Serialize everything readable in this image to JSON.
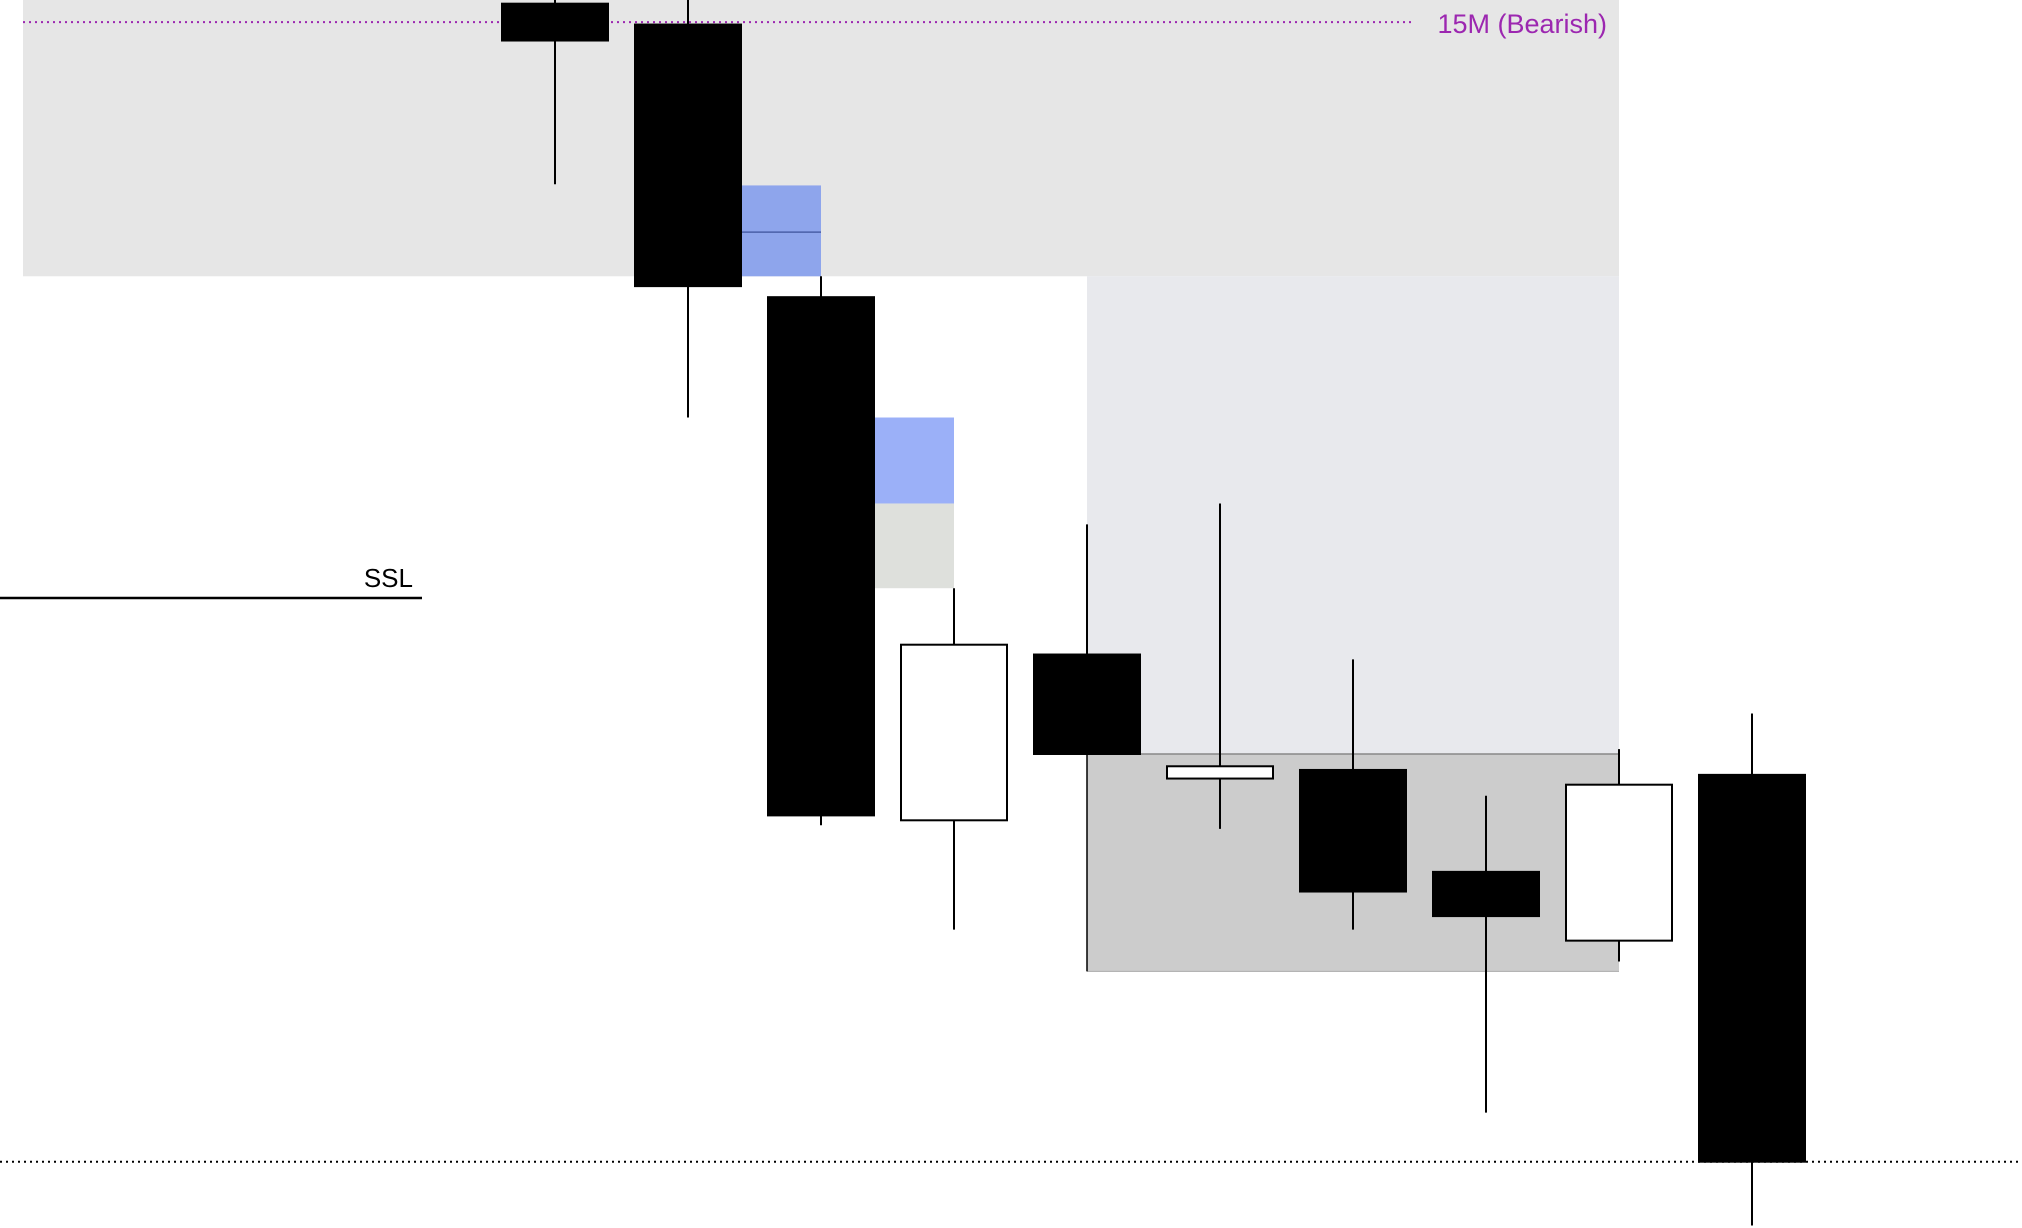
{
  "chart_data": {
    "type": "candlestick",
    "title": "",
    "xlabel": "",
    "ylabel": "",
    "ylim": [
      0,
      100
    ],
    "grid": false,
    "colors": {
      "bearish_body": "#000000",
      "bullish_body": "#ffffff",
      "premium_zone": "#e6e6e6",
      "upper_range_zone": "#e8e9ed",
      "lower_range_zone": "#cccccc",
      "fvg_1": "#8ea5ec",
      "fvg_2": "#9bb0f8",
      "fvg_2_filled": "#dee0dc",
      "timeframe_line": "#9c27b0"
    },
    "candles": [
      {
        "open": 99.7,
        "high": 100.0,
        "low": 85.0,
        "close": 96.7
      },
      {
        "open": 98.0,
        "high": 100.0,
        "low": 66.0,
        "close": 76.7
      },
      {
        "open": 75.8,
        "high": 77.5,
        "low": 32.8,
        "close": 33.6
      },
      {
        "open": 33.2,
        "high": 52.1,
        "low": 24.3,
        "close": 47.5
      },
      {
        "open": 46.7,
        "high": 57.3,
        "low": 38.6,
        "close": 38.6
      },
      {
        "open": 36.6,
        "high": 59.0,
        "low": 32.5,
        "close": 37.6
      },
      {
        "open": 37.3,
        "high": 46.3,
        "low": 24.3,
        "close": 27.4
      },
      {
        "open": 29.0,
        "high": 35.2,
        "low": 9.4,
        "close": 25.4
      },
      {
        "open": 23.4,
        "high": 39.0,
        "low": 21.7,
        "close": 36.1
      },
      {
        "open": 36.9,
        "high": 41.9,
        "low": 0.2,
        "close": 5.4
      }
    ],
    "zones": [
      {
        "name": "premium-zone",
        "from": -4.0,
        "to": 8.0,
        "top": 100.0,
        "bottom": 77.5,
        "color": "#e6e6e6"
      },
      {
        "name": "upper-range-zone",
        "from": 4.0,
        "to": 8.0,
        "top": 77.5,
        "bottom": 38.6,
        "color": "#e8e9ed"
      },
      {
        "name": "lower-range-zone",
        "from": 4.0,
        "to": 8.0,
        "top": 38.6,
        "bottom": 20.9,
        "color": "#cccccc"
      },
      {
        "name": "fvg-zone-1",
        "from": 1.4,
        "to": 2.0,
        "top": 84.9,
        "bottom": 77.5,
        "mid": 81.1,
        "color": "#8ea5ec"
      },
      {
        "name": "fvg-zone-2",
        "from": 2.4,
        "to": 3.0,
        "top": 66.0,
        "bottom": 59.0,
        "color": "#9bb0f8"
      },
      {
        "name": "fvg-zone-2-filled",
        "from": 2.4,
        "to": 3.0,
        "top": 59.0,
        "bottom": 52.1,
        "color": "#dee0dc"
      }
    ],
    "levels": [
      {
        "name": "timeframe-level",
        "label": "15M (Bearish)",
        "price": 98.2,
        "from": -4.0,
        "to": 6.44,
        "style": "dotted",
        "color": "#9c27b0"
      },
      {
        "name": "ssl-level",
        "label": "SSL",
        "price": 51.3,
        "from": -4.2,
        "to": -1.0,
        "style": "solid",
        "color": "#000000"
      },
      {
        "name": "close-level",
        "label": "",
        "price": 5.4,
        "from": -4.2,
        "to": 11.0,
        "style": "dotted",
        "color": "#000000"
      }
    ]
  }
}
